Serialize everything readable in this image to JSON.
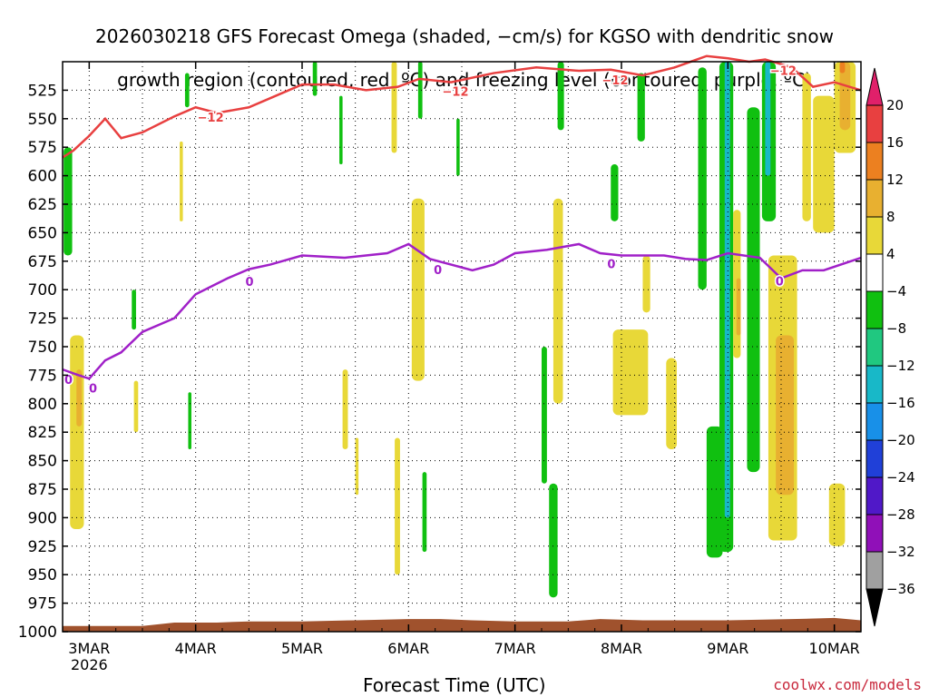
{
  "title_line1": "2026030218 GFS Forecast Omega (shaded, −cm/s) for KGSO with dendritic snow",
  "title_line2": "growth region (contoured, red, ºC) and freezing level (contoured, purple, ºC)",
  "credit": "coolwx.com/models",
  "chart_data": {
    "type": "heatmap",
    "title": "2026030218 GFS Forecast Omega (shaded, −cm/s) for KGSO with dendritic snow growth region (contoured, red, ºC) and freezing level (contoured, purple, ºC)",
    "xlabel": "Forecast Time (UTC)",
    "ylabel": "",
    "x_ticks": [
      "3MAR",
      "4MAR",
      "5MAR",
      "6MAR",
      "7MAR",
      "8MAR",
      "9MAR",
      "10MAR"
    ],
    "x_tick_year": "2026",
    "x_range_days": [
      2.75,
      10.25
    ],
    "y_ticks": [
      525,
      550,
      575,
      600,
      625,
      650,
      675,
      700,
      725,
      750,
      775,
      800,
      825,
      850,
      875,
      900,
      925,
      950,
      975,
      1000
    ],
    "y_range_hpa": [
      500,
      1000
    ],
    "y_axis_inverted": true,
    "grid": true,
    "colorbar": {
      "labels": [
        "20",
        "16",
        "12",
        "8",
        "4",
        "−4",
        "−8",
        "−12",
        "−16",
        "−20",
        "−24",
        "−28",
        "−32",
        "−36"
      ],
      "colors": [
        "#e0206a",
        "#e84040",
        "#ec8020",
        "#e8b030",
        "#e8d838",
        "#ffffff",
        "#10c010",
        "#20c880",
        "#18b8c8",
        "#1890e8",
        "#2040d8",
        "#5018c8",
        "#9010b8",
        "#a0a0a0",
        "#000000"
      ]
    },
    "series": [
      {
        "name": "-12",
        "color": "#e84040",
        "points": [
          [
            2.75,
            584
          ],
          [
            2.85,
            578
          ],
          [
            3.0,
            565
          ],
          [
            3.15,
            550
          ],
          [
            3.3,
            567
          ],
          [
            3.5,
            562
          ],
          [
            3.8,
            548
          ],
          [
            4.0,
            540
          ],
          [
            4.2,
            545
          ],
          [
            4.5,
            540
          ],
          [
            4.8,
            528
          ],
          [
            5.0,
            520
          ],
          [
            5.3,
            520
          ],
          [
            5.6,
            525
          ],
          [
            5.9,
            522
          ],
          [
            6.1,
            515
          ],
          [
            6.4,
            518
          ],
          [
            6.8,
            510
          ],
          [
            7.2,
            505
          ],
          [
            7.6,
            508
          ],
          [
            7.9,
            507
          ],
          [
            8.2,
            512
          ],
          [
            8.5,
            505
          ],
          [
            8.8,
            495
          ],
          [
            9.0,
            497
          ],
          [
            9.2,
            500
          ],
          [
            9.35,
            498
          ],
          [
            9.6,
            505
          ],
          [
            9.8,
            522
          ],
          [
            10.0,
            518
          ],
          [
            10.25,
            525
          ]
        ]
      },
      {
        "name": "0",
        "color": "#a020c8",
        "points": [
          [
            2.75,
            770
          ],
          [
            2.9,
            775
          ],
          [
            3.0,
            778
          ],
          [
            3.15,
            762
          ],
          [
            3.3,
            755
          ],
          [
            3.5,
            737
          ],
          [
            3.8,
            725
          ],
          [
            4.0,
            704
          ],
          [
            4.3,
            690
          ],
          [
            4.5,
            682
          ],
          [
            4.7,
            678
          ],
          [
            5.0,
            670
          ],
          [
            5.4,
            672
          ],
          [
            5.8,
            668
          ],
          [
            6.0,
            660
          ],
          [
            6.2,
            673
          ],
          [
            6.4,
            678
          ],
          [
            6.6,
            683
          ],
          [
            6.8,
            678
          ],
          [
            7.0,
            668
          ],
          [
            7.3,
            665
          ],
          [
            7.6,
            660
          ],
          [
            7.8,
            668
          ],
          [
            8.0,
            670
          ],
          [
            8.4,
            670
          ],
          [
            8.6,
            673
          ],
          [
            8.8,
            674
          ],
          [
            9.0,
            668
          ],
          [
            9.3,
            672
          ],
          [
            9.5,
            690
          ],
          [
            9.7,
            683
          ],
          [
            9.9,
            683
          ],
          [
            10.25,
            672
          ]
        ]
      }
    ],
    "shaded": [
      {
        "x": [
          2.76,
          2.84
        ],
        "y": [
          575,
          670
        ],
        "value": -6
      },
      {
        "x": [
          2.82,
          2.95
        ],
        "y": [
          740,
          910
        ],
        "value": 4
      },
      {
        "x": [
          2.88,
          2.93
        ],
        "y": [
          770,
          820
        ],
        "value": 10
      },
      {
        "x": [
          3.4,
          3.44
        ],
        "y": [
          700,
          735
        ],
        "value": -6
      },
      {
        "x": [
          3.42,
          3.46
        ],
        "y": [
          780,
          825
        ],
        "value": 4
      },
      {
        "x": [
          3.85,
          3.88
        ],
        "y": [
          570,
          640
        ],
        "value": 4
      },
      {
        "x": [
          3.9,
          3.94
        ],
        "y": [
          510,
          540
        ],
        "value": -6
      },
      {
        "x": [
          3.93,
          3.96
        ],
        "y": [
          790,
          840
        ],
        "value": -6
      },
      {
        "x": [
          5.1,
          5.14
        ],
        "y": [
          500,
          530
        ],
        "value": -6
      },
      {
        "x": [
          5.35,
          5.38
        ],
        "y": [
          530,
          590
        ],
        "value": -6
      },
      {
        "x": [
          5.38,
          5.43
        ],
        "y": [
          770,
          840
        ],
        "value": 4
      },
      {
        "x": [
          5.5,
          5.53
        ],
        "y": [
          830,
          880
        ],
        "value": 4
      },
      {
        "x": [
          5.84,
          5.89
        ],
        "y": [
          500,
          580
        ],
        "value": 4
      },
      {
        "x": [
          5.87,
          5.92
        ],
        "y": [
          830,
          950
        ],
        "value": 4
      },
      {
        "x": [
          6.03,
          6.15
        ],
        "y": [
          620,
          780
        ],
        "value": 4
      },
      {
        "x": [
          6.09,
          6.13
        ],
        "y": [
          500,
          550
        ],
        "value": -6
      },
      {
        "x": [
          6.13,
          6.17
        ],
        "y": [
          860,
          930
        ],
        "value": -6
      },
      {
        "x": [
          6.45,
          6.48
        ],
        "y": [
          550,
          600
        ],
        "value": -6
      },
      {
        "x": [
          7.25,
          7.3
        ],
        "y": [
          750,
          870
        ],
        "value": -6
      },
      {
        "x": [
          7.32,
          7.4
        ],
        "y": [
          870,
          970
        ],
        "value": -6
      },
      {
        "x": [
          7.4,
          7.46
        ],
        "y": [
          500,
          560
        ],
        "value": -6
      },
      {
        "x": [
          7.36,
          7.45
        ],
        "y": [
          620,
          800
        ],
        "value": 4
      },
      {
        "x": [
          7.9,
          7.97
        ],
        "y": [
          590,
          640
        ],
        "value": -6
      },
      {
        "x": [
          7.92,
          8.25
        ],
        "y": [
          735,
          810
        ],
        "value": 4
      },
      {
        "x": [
          8.15,
          8.22
        ],
        "y": [
          510,
          570
        ],
        "value": -6
      },
      {
        "x": [
          8.2,
          8.27
        ],
        "y": [
          670,
          720
        ],
        "value": 4
      },
      {
        "x": [
          8.42,
          8.52
        ],
        "y": [
          760,
          840
        ],
        "value": 4
      },
      {
        "x": [
          8.72,
          8.8
        ],
        "y": [
          505,
          700
        ],
        "value": -6
      },
      {
        "x": [
          8.8,
          8.95
        ],
        "y": [
          820,
          935
        ],
        "value": -6
      },
      {
        "x": [
          8.92,
          9.05
        ],
        "y": [
          500,
          930
        ],
        "value": -6
      },
      {
        "x": [
          8.97,
          9.02
        ],
        "y": [
          500,
          900
        ],
        "value": -12
      },
      {
        "x": [
          9.05,
          9.12
        ],
        "y": [
          630,
          760
        ],
        "value": 4
      },
      {
        "x": [
          9.08,
          9.12
        ],
        "y": [
          690,
          740
        ],
        "value": 10
      },
      {
        "x": [
          9.18,
          9.3
        ],
        "y": [
          540,
          860
        ],
        "value": -6
      },
      {
        "x": [
          9.32,
          9.45
        ],
        "y": [
          500,
          640
        ],
        "value": -6
      },
      {
        "x": [
          9.35,
          9.4
        ],
        "y": [
          500,
          600
        ],
        "value": -12
      },
      {
        "x": [
          9.38,
          9.65
        ],
        "y": [
          670,
          920
        ],
        "value": 4
      },
      {
        "x": [
          9.45,
          9.62
        ],
        "y": [
          740,
          880
        ],
        "value": 10
      },
      {
        "x": [
          9.7,
          9.78
        ],
        "y": [
          510,
          640
        ],
        "value": 4
      },
      {
        "x": [
          9.8,
          10.0
        ],
        "y": [
          530,
          650
        ],
        "value": 4
      },
      {
        "x": [
          9.95,
          10.1
        ],
        "y": [
          870,
          925
        ],
        "value": 4
      },
      {
        "x": [
          10.0,
          10.2
        ],
        "y": [
          500,
          580
        ],
        "value": 4
      },
      {
        "x": [
          10.05,
          10.15
        ],
        "y": [
          500,
          560
        ],
        "value": 10
      },
      {
        "x": [
          10.05,
          10.1
        ],
        "y": [
          500,
          510
        ],
        "value": 14
      }
    ],
    "terrain": {
      "color": "#a0522d",
      "points": [
        [
          2.75,
          995
        ],
        [
          3.5,
          995
        ],
        [
          3.8,
          992
        ],
        [
          4.2,
          992
        ],
        [
          4.5,
          991
        ],
        [
          5.0,
          991
        ],
        [
          5.5,
          990
        ],
        [
          6.0,
          989
        ],
        [
          6.3,
          989
        ],
        [
          6.6,
          990
        ],
        [
          7.0,
          991
        ],
        [
          7.5,
          991
        ],
        [
          7.8,
          989
        ],
        [
          8.2,
          990
        ],
        [
          8.6,
          990
        ],
        [
          9.0,
          990
        ],
        [
          9.6,
          989
        ],
        [
          10.0,
          988
        ],
        [
          10.25,
          990
        ]
      ]
    }
  }
}
